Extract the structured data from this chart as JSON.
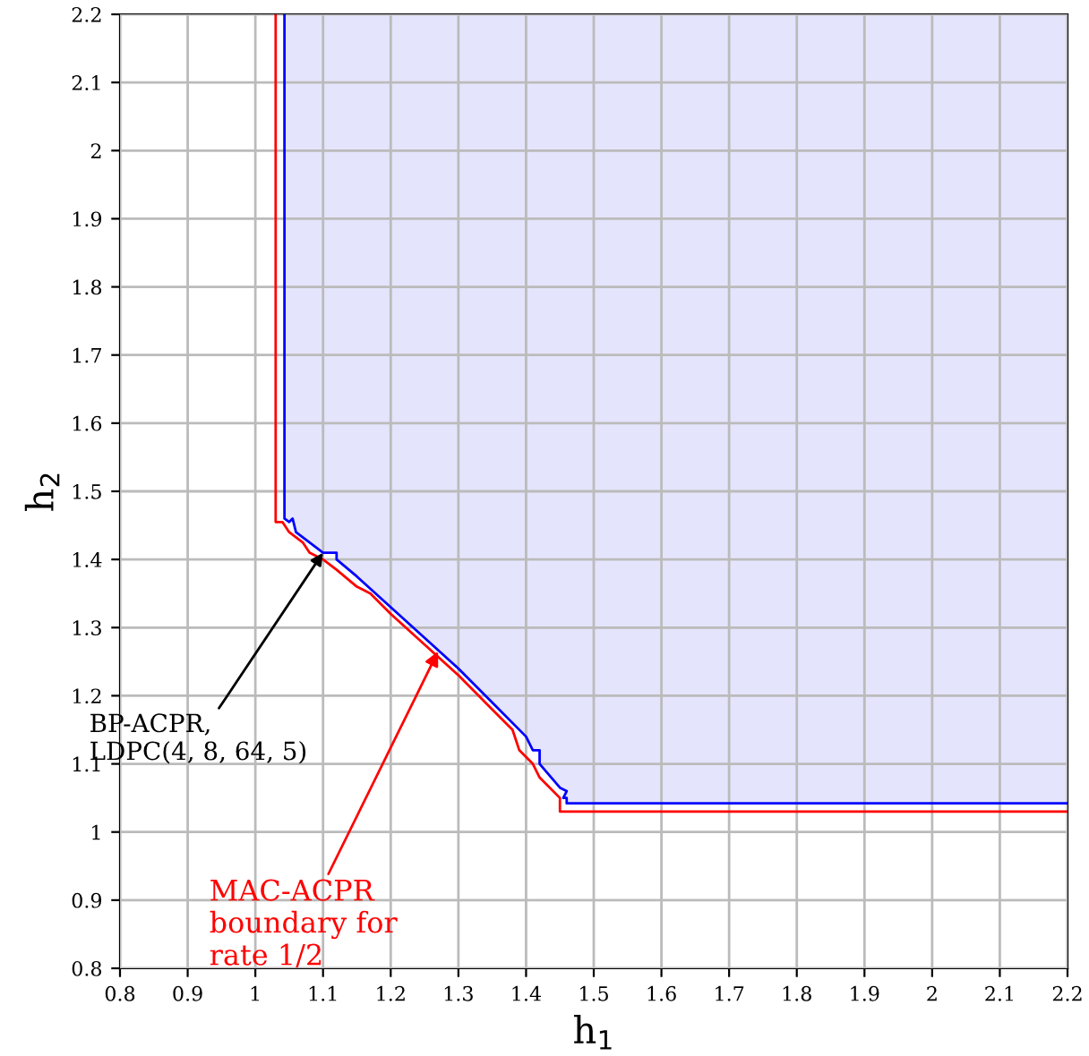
{
  "chart_data": {
    "type": "line",
    "xlabel": "h$_{1}$",
    "ylabel": "h$_{2}$",
    "xlim": [
      0.8,
      2.2
    ],
    "ylim": [
      0.8,
      2.2
    ],
    "xticks": [
      0.8,
      0.9,
      1,
      1.1,
      1.2,
      1.3,
      1.4,
      1.5,
      1.6,
      1.7,
      1.8,
      1.9,
      2,
      2.1,
      2.2
    ],
    "yticks": [
      0.8,
      0.9,
      1,
      1.1,
      1.2,
      1.3,
      1.4,
      1.5,
      1.6,
      1.7,
      1.8,
      1.9,
      2,
      2.1,
      2.2
    ],
    "grid": true,
    "series": [
      {
        "color": "#0000ff",
        "x": [
          1.043,
          1.043,
          1.05,
          1.055,
          1.06,
          1.08,
          1.1,
          1.12,
          1.12,
          1.15,
          1.2,
          1.25,
          1.3,
          1.35,
          1.4,
          1.41,
          1.42,
          1.42,
          1.45,
          1.46,
          1.455,
          1.46,
          1.46,
          2.2
        ],
        "values": [
          2.2,
          1.46,
          1.455,
          1.46,
          1.44,
          1.425,
          1.41,
          1.41,
          1.4,
          1.375,
          1.33,
          1.285,
          1.24,
          1.19,
          1.14,
          1.12,
          1.12,
          1.1,
          1.065,
          1.06,
          1.05,
          1.05,
          1.042,
          1.042
        ]
      },
      {
        "color": "#ff0000",
        "x": [
          1.03,
          1.03,
          1.04,
          1.05,
          1.07,
          1.08,
          1.1,
          1.12,
          1.15,
          1.17,
          1.2,
          1.25,
          1.3,
          1.35,
          1.38,
          1.39,
          1.41,
          1.42,
          1.45,
          1.45,
          2.2
        ],
        "values": [
          2.2,
          1.455,
          1.455,
          1.44,
          1.425,
          1.41,
          1.4,
          1.385,
          1.36,
          1.35,
          1.32,
          1.275,
          1.23,
          1.18,
          1.15,
          1.12,
          1.1,
          1.08,
          1.05,
          1.03,
          1.03
        ]
      }
    ],
    "annotations": [
      {
        "text": "BP-ACPR,\nLDPC(4, 8, 64, 5)",
        "x": 1.1,
        "y": 1.41
      },
      {
        "text": "MAC-ACPR\nboundary for\nrate 1/2",
        "x": 1.27,
        "y": 1.265
      }
    ]
  }
}
